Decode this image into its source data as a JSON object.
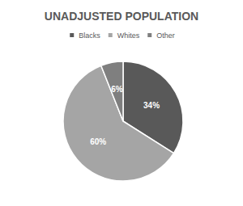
{
  "chart_data": {
    "type": "pie",
    "title": "UNADJUSTED POPULATION",
    "categories": [
      "Blacks",
      "Whites",
      "Other"
    ],
    "values": [
      34,
      60,
      6
    ],
    "value_labels": [
      "34%",
      "60%",
      "6%"
    ],
    "colors": [
      "#595959",
      "#a5a5a5",
      "#7f7f7f"
    ],
    "legend": "top",
    "data_labels": true
  }
}
